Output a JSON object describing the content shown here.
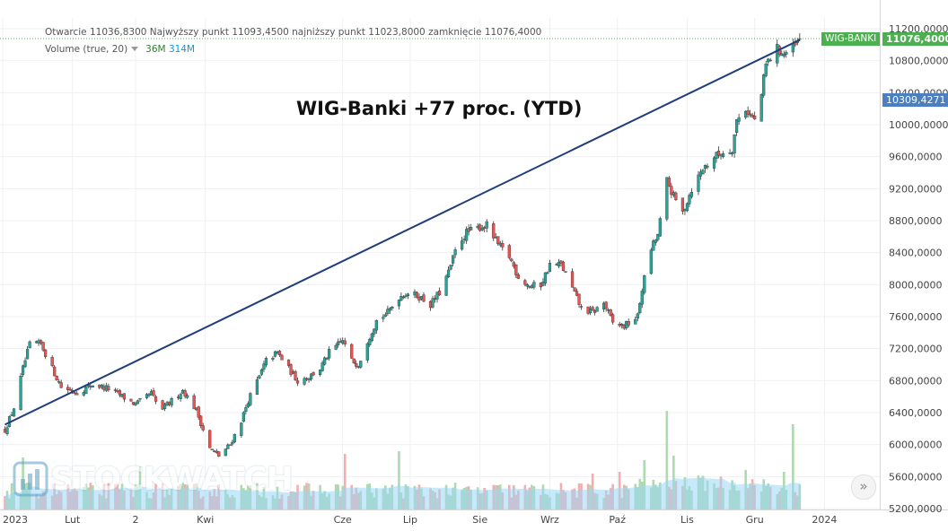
{
  "legend": {
    "ohlc_text": "Otwarcie  11036,8300  Najwyższy punkt  11093,4500  najniższy punkt  11023,8000  zamknięcie  11076,4000",
    "volume_label": "Volume (true, 20)",
    "volume_value": "36M",
    "volume_ma": "314M"
  },
  "watermark": {
    "text": "STOCKWATCH"
  },
  "badges": {
    "symbol": "WIG-BANKI",
    "last_price": "11076,4000",
    "line_price": "10309,4271"
  },
  "scroll_button": {
    "glyph": "»"
  },
  "colors": {
    "up": "#26a69a",
    "down": "#ef5350",
    "trendline": "#1f3d7a",
    "badge_green": "#4caf50",
    "badge_blue": "#4a7fc1",
    "volume_up": "#a5d6a7",
    "volume_down": "#f4a4a6",
    "volume_ma": "#9ad7f5",
    "grid": "#eef0f3"
  },
  "chart_data": {
    "type": "candlestick",
    "title": "WIG-Banki +77 proc. (YTD)",
    "price_axis": {
      "ylim": [
        5200,
        11200
      ],
      "ticks": [
        "11200,0000",
        "10800,0000",
        "10400,0000",
        "10000,0000",
        "9600,0000",
        "9200,0000",
        "8800,0000",
        "8400,0000",
        "8000,0000",
        "7600,0000",
        "7200,0000",
        "6800,0000",
        "6400,0000",
        "6000,0000",
        "5600,0000",
        "5200,0000"
      ],
      "tick_values": [
        11200,
        10800,
        10400,
        10000,
        9600,
        9200,
        8800,
        8400,
        8000,
        7600,
        7200,
        6800,
        6400,
        6000,
        5600,
        5200
      ]
    },
    "time_axis": {
      "labels": [
        "2023",
        "Lut",
        "2",
        "Kwi",
        "Cze",
        "Lip",
        "Sie",
        "Wrz",
        "Paź",
        "Lis",
        "Gru",
        "2024"
      ],
      "label_dates": [
        "2023-01-01",
        "2023-02-01",
        "2023-03-01",
        "2023-04-01",
        "2023-06-01",
        "2023-07-01",
        "2023-08-01",
        "2023-09-01",
        "2023-10-01",
        "2023-11-01",
        "2023-12-01",
        "2024-01-01"
      ]
    },
    "anchors": [
      [
        "2023-01-02",
        6180
      ],
      [
        "2023-01-06",
        6460
      ],
      [
        "2023-01-10",
        6950
      ],
      [
        "2023-01-13",
        7250
      ],
      [
        "2023-01-18",
        7260
      ],
      [
        "2023-01-23",
        6950
      ],
      [
        "2023-01-27",
        6720
      ],
      [
        "2023-02-03",
        6650
      ],
      [
        "2023-02-10",
        6750
      ],
      [
        "2023-02-17",
        6700
      ],
      [
        "2023-02-22",
        6620
      ],
      [
        "2023-03-01",
        6500
      ],
      [
        "2023-03-08",
        6640
      ],
      [
        "2023-03-12",
        6420
      ],
      [
        "2023-03-16",
        6520
      ],
      [
        "2023-03-22",
        6680
      ],
      [
        "2023-03-28",
        6430
      ],
      [
        "2023-04-03",
        5950
      ],
      [
        "2023-04-07",
        5860
      ],
      [
        "2023-04-12",
        6000
      ],
      [
        "2023-04-17",
        6300
      ],
      [
        "2023-04-20",
        6550
      ],
      [
        "2023-04-25",
        6850
      ],
      [
        "2023-04-28",
        7050
      ],
      [
        "2023-05-03",
        7150
      ],
      [
        "2023-05-08",
        6950
      ],
      [
        "2023-05-12",
        6800
      ],
      [
        "2023-05-17",
        6850
      ],
      [
        "2023-05-22",
        6950
      ],
      [
        "2023-05-26",
        7150
      ],
      [
        "2023-06-01",
        7300
      ],
      [
        "2023-06-05",
        7050
      ],
      [
        "2023-06-08",
        7000
      ],
      [
        "2023-06-12",
        7300
      ],
      [
        "2023-06-16",
        7550
      ],
      [
        "2023-06-21",
        7650
      ],
      [
        "2023-06-26",
        7850
      ],
      [
        "2023-06-30",
        7900
      ],
      [
        "2023-07-05",
        7850
      ],
      [
        "2023-07-10",
        7750
      ],
      [
        "2023-07-14",
        7900
      ],
      [
        "2023-07-18",
        8150
      ],
      [
        "2023-07-22",
        8500
      ],
      [
        "2023-07-26",
        8650
      ],
      [
        "2023-08-01",
        8720
      ],
      [
        "2023-08-04",
        8740
      ],
      [
        "2023-08-09",
        8500
      ],
      [
        "2023-08-14",
        8350
      ],
      [
        "2023-08-18",
        8100
      ],
      [
        "2023-08-23",
        7980
      ],
      [
        "2023-08-28",
        8000
      ],
      [
        "2023-09-01",
        8250
      ],
      [
        "2023-09-06",
        8250
      ],
      [
        "2023-09-11",
        7950
      ],
      [
        "2023-09-15",
        7700
      ],
      [
        "2023-09-20",
        7650
      ],
      [
        "2023-09-25",
        7770
      ],
      [
        "2023-09-29",
        7520
      ],
      [
        "2023-10-04",
        7480
      ],
      [
        "2023-10-10",
        7600
      ],
      [
        "2023-10-12",
        7950
      ],
      [
        "2023-10-16",
        8450
      ],
      [
        "2023-10-19",
        8620
      ],
      [
        "2023-10-23",
        9300
      ],
      [
        "2023-10-26",
        9100
      ],
      [
        "2023-10-30",
        8900
      ],
      [
        "2023-11-03",
        9200
      ],
      [
        "2023-11-08",
        9450
      ],
      [
        "2023-11-13",
        9600
      ],
      [
        "2023-11-17",
        9650
      ],
      [
        "2023-11-21",
        9700
      ],
      [
        "2023-11-23",
        10050
      ],
      [
        "2023-11-27",
        10200
      ],
      [
        "2023-12-01",
        10050
      ],
      [
        "2023-12-04",
        10380
      ],
      [
        "2023-12-06",
        10750
      ],
      [
        "2023-12-11",
        10950
      ],
      [
        "2023-12-14",
        10880
      ],
      [
        "2023-12-19",
        10980
      ],
      [
        "2023-12-21",
        11076
      ]
    ],
    "trendline": {
      "start": [
        "2023-01-02",
        6250
      ],
      "end": [
        "2023-12-21",
        11060
      ],
      "color": "#1f3d7a"
    },
    "last_close": 11076.4,
    "line_price": 10309.4271,
    "volume": {
      "label": "Volume (true, 20)",
      "last": "36M",
      "ma": "314M",
      "spikes": [
        [
          "2023-01-10",
          58
        ],
        [
          "2023-03-03",
          48
        ],
        [
          "2023-06-02",
          62
        ],
        [
          "2023-06-26",
          65
        ],
        [
          "2023-09-20",
          40
        ],
        [
          "2023-10-02",
          42
        ],
        [
          "2023-10-13",
          55
        ],
        [
          "2023-10-23",
          110
        ],
        [
          "2023-10-26",
          60
        ],
        [
          "2023-11-27",
          44
        ],
        [
          "2023-12-14",
          42
        ],
        [
          "2023-12-18",
          95
        ]
      ]
    },
    "grid": true,
    "legend_position": "top-left"
  }
}
